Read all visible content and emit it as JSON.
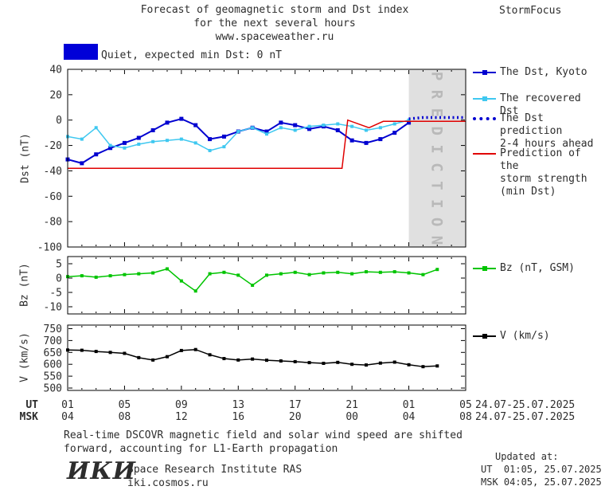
{
  "header": {
    "title_line1": "Forecast of geomagnetic storm and Dst index",
    "title_line2": "for the next several hours",
    "title_line3": "www.spaceweather.ru",
    "brand": "StormFocus"
  },
  "status": {
    "label": "Quiet, expected min Dst: 0 nT"
  },
  "colors": {
    "kyoto": "#0000d0",
    "recovered": "#3fc8f0",
    "prediction": "#0000d0",
    "storm": "#e00000",
    "bz": "#00c400",
    "v": "#000000",
    "status_box": "#0000d8"
  },
  "chart_data": [
    {
      "type": "line",
      "ylabel": "Dst (nT)",
      "ylim": [
        -100,
        40
      ],
      "yticks": [
        40,
        20,
        0,
        -20,
        -40,
        -60,
        -80,
        -100
      ],
      "prediction_band": {
        "x_start": 25,
        "x_end": 29,
        "label": "P R E D I C T I O N",
        "fill": "#e0e0e0",
        "text_color": "#b9b9b9"
      },
      "series": [
        {
          "key": "kyoto",
          "name": "The Dst, Kyoto",
          "marker": "square",
          "msize": 5,
          "width": 2,
          "x_start": 1,
          "values": [
            -31,
            -34,
            -27,
            -22,
            -18,
            -14,
            -8,
            -2,
            1,
            -4,
            -15,
            -13,
            -9,
            -6,
            -9,
            -2,
            -4,
            -7,
            -5,
            -8,
            -16,
            -18,
            -15,
            -10,
            -2
          ]
        },
        {
          "key": "recovered",
          "name": "The recovered Dst",
          "marker": "square",
          "msize": 4,
          "width": 1.5,
          "x_start": 1,
          "values": [
            -13,
            -15,
            -6,
            -20,
            -22,
            -19,
            -17,
            -16,
            -15,
            -18,
            -24,
            -21,
            -9,
            -6,
            -11,
            -6,
            -8,
            -5,
            -4,
            -3,
            -5,
            -8,
            -6,
            -3,
            0
          ]
        },
        {
          "key": "prediction",
          "name": "The Dst prediction 2-4 hours ahead",
          "style": "dotted",
          "width": 3.5,
          "x": [
            25,
            26,
            27,
            28,
            29
          ],
          "values": [
            1,
            2,
            2,
            2,
            2
          ]
        },
        {
          "key": "storm",
          "name": "Prediction of the storm strength (min Dst)",
          "width": 1.5,
          "x": [
            1,
            20.3,
            20.7,
            22.2,
            23.2,
            29
          ],
          "values": [
            -38,
            -38,
            0,
            -6,
            -1,
            -1
          ]
        }
      ]
    },
    {
      "type": "line",
      "ylabel": "Bz (nT)",
      "ylim": [
        -12.5,
        7.5
      ],
      "yticks": [
        5,
        0,
        -5,
        -10
      ],
      "series": [
        {
          "key": "bz",
          "name": "Bz (nT, GSM)",
          "marker": "square",
          "msize": 4,
          "width": 1.5,
          "x_start": 1,
          "values": [
            0.5,
            0.8,
            0.3,
            0.8,
            1.2,
            1.5,
            1.8,
            3.2,
            -1.0,
            -4.5,
            1.5,
            2.0,
            1.0,
            -2.5,
            1.0,
            1.5,
            2.0,
            1.2,
            1.8,
            2.0,
            1.5,
            2.2,
            2.0,
            2.2,
            1.8,
            1.2,
            3.0
          ]
        }
      ]
    },
    {
      "type": "line",
      "ylabel": "V (km/s)",
      "ylim": [
        490,
        765
      ],
      "yticks": [
        750,
        700,
        650,
        600,
        550,
        500
      ],
      "series": [
        {
          "key": "v",
          "name": "V (km/s)",
          "marker": "square",
          "msize": 4,
          "width": 1.5,
          "x_start": 1,
          "values": [
            660,
            659,
            654,
            650,
            646,
            628,
            618,
            632,
            658,
            662,
            640,
            624,
            618,
            622,
            617,
            614,
            611,
            607,
            604,
            608,
            600,
            597,
            605,
            609,
            598,
            590,
            593
          ]
        }
      ]
    }
  ],
  "xaxis": {
    "xlim": [
      1,
      29
    ],
    "minor_step": 1,
    "tick_positions": [
      1,
      5,
      9,
      13,
      17,
      21,
      25,
      29
    ],
    "ut_labels": [
      "01",
      "05",
      "09",
      "13",
      "17",
      "21",
      "01",
      "05"
    ],
    "msk_labels": [
      "04",
      "08",
      "12",
      "16",
      "20",
      "00",
      "04",
      "08"
    ]
  },
  "axis_rows": {
    "ut_prefix": "UT",
    "msk_prefix": "MSK",
    "ut_date": "24.07-25.07.2025",
    "msk_date": "24.07-25.07.2025"
  },
  "legend": {
    "dst_panel": [
      {
        "key": "kyoto",
        "label": "The Dst, Kyoto",
        "style": "marker"
      },
      {
        "key": "recovered",
        "label": "The recovered Dst",
        "style": "marker"
      },
      {
        "key": "prediction",
        "label": "The Dst prediction\n2-4 hours ahead",
        "style": "dotted"
      },
      {
        "key": "storm",
        "label": "Prediction of the\nstorm strength\n(min Dst)",
        "style": "plain"
      }
    ],
    "bz_panel": [
      {
        "key": "bz",
        "label": "Bz (nT, GSM)",
        "style": "marker"
      }
    ],
    "v_panel": [
      {
        "key": "v",
        "label": "V (km/s)",
        "style": "marker"
      }
    ]
  },
  "footer": {
    "note_line1": "Real-time DSCOVR magnetic field and solar wind speed are shifted",
    "note_line2": "forward, accounting for L1-Earth propagation",
    "logo": "ИКИ",
    "institute": "Space Research Institute RAS",
    "site": "iki.cosmos.ru",
    "updated_label": "Updated at:",
    "updated_ut": "UT  01:05, 25.07.2025",
    "updated_msk": "MSK 04:05, 25.07.2025"
  }
}
